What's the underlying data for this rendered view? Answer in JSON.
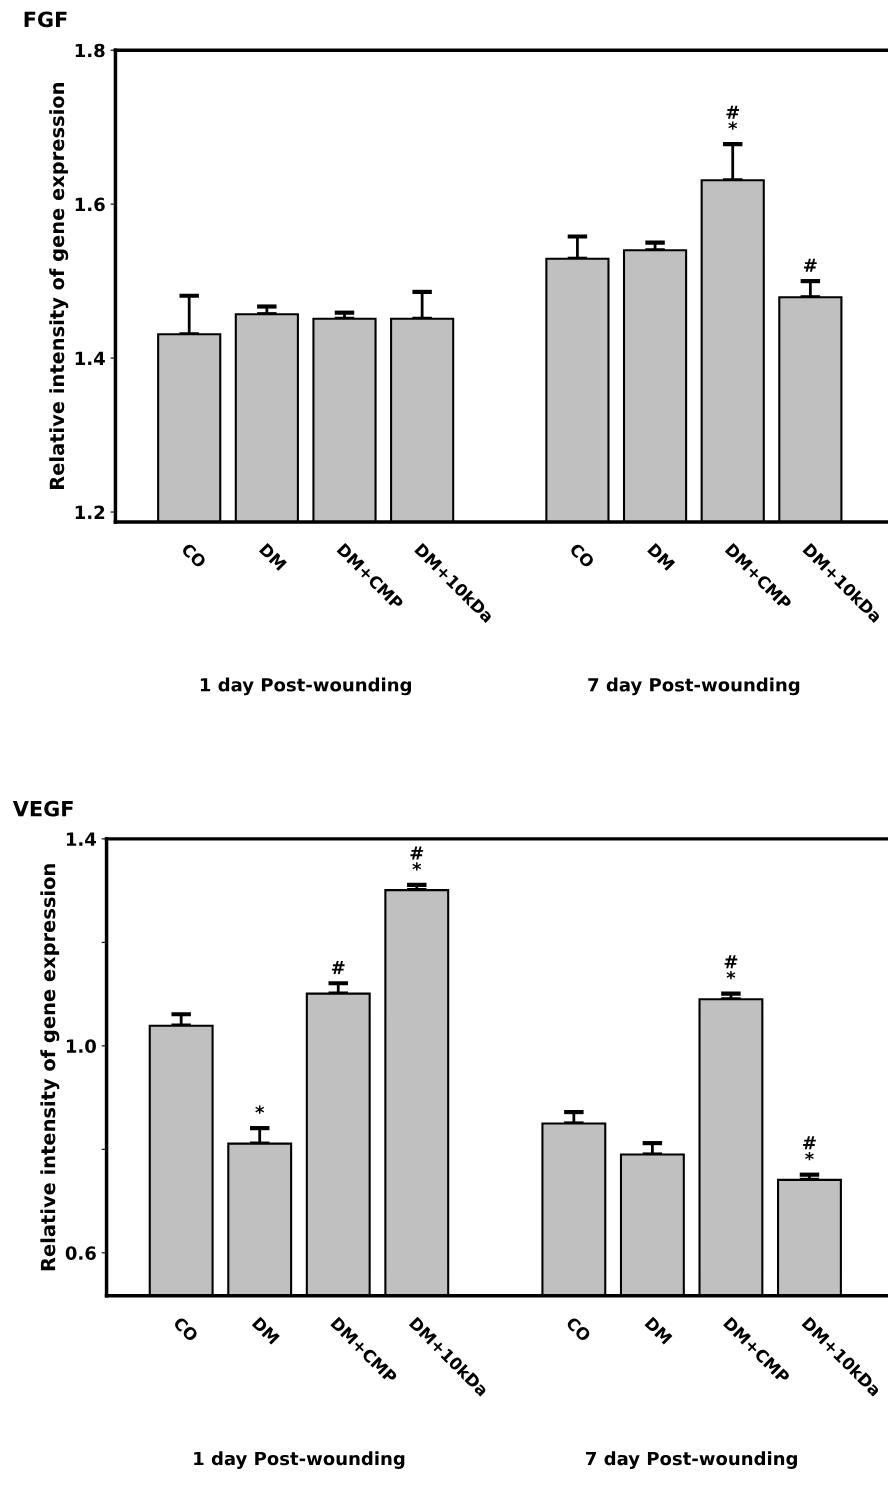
{
  "chart_data": [
    {
      "type": "bar",
      "title": "FGF",
      "ylabel": "Relative intensity of gene expression",
      "categories": [
        "CO",
        "DM",
        "DM+CMP",
        "DM+10kDa",
        null,
        "CO",
        "DM",
        "DM+CMP",
        "DM+10kDa"
      ],
      "values": [
        1.431,
        1.457,
        1.451,
        1.451,
        null,
        1.529,
        1.54,
        1.631,
        1.479
      ],
      "errors": [
        [
          1.431,
          1.481
        ],
        [
          1.457,
          1.467
        ],
        [
          1.451,
          1.459
        ],
        [
          1.451,
          1.486
        ],
        null,
        [
          1.529,
          1.558
        ],
        [
          1.54,
          1.55
        ],
        [
          1.631,
          1.678
        ],
        [
          1.479,
          1.5
        ]
      ],
      "value_labels": [
        null,
        null,
        null,
        null,
        null,
        null,
        null,
        "#\n*",
        "#"
      ],
      "color": "#c0c0c0",
      "ylim": [
        1.187,
        1.8
      ],
      "yticks": [
        1.2,
        1.4,
        1.6,
        1.8
      ],
      "grid": false,
      "legend": false,
      "annotations": [
        "1 day Post-wounding",
        "7 day Post-wounding"
      ]
    },
    {
      "type": "bar",
      "title": "VEGF",
      "ylabel": "Relative intensity of gene expression",
      "categories": [
        "CO",
        "DM",
        "DM+CMP",
        "DM+10kDa",
        null,
        "CO",
        "DM",
        "DM+CMP",
        "DM+10kDa"
      ],
      "values": [
        1.039,
        0.811,
        1.101,
        1.301,
        null,
        0.85,
        0.79,
        1.09,
        0.741
      ],
      "errors": [
        [
          1.039,
          1.061
        ],
        [
          0.811,
          0.841
        ],
        [
          1.101,
          1.121
        ],
        [
          1.301,
          1.311
        ],
        null,
        [
          0.85,
          0.872
        ],
        [
          0.79,
          0.812
        ],
        [
          1.09,
          1.101
        ],
        [
          0.741,
          0.751
        ]
      ],
      "value_labels": [
        null,
        "*",
        "#",
        "#\n*",
        null,
        null,
        null,
        "#\n*",
        "#\n*"
      ],
      "color": "#c0c0c0",
      "ylim": [
        0.517,
        1.4
      ],
      "yticks": [
        0.6,
        {
          "value": 0.8,
          "label": null
        },
        {
          "value": 1.0,
          "label": "1.0"
        },
        {
          "value": 1.2,
          "label": null
        },
        1.4
      ],
      "grid": false,
      "legend": false,
      "annotations": [
        "1 day Post-wounding",
        "7 day Post-wounding"
      ]
    }
  ]
}
